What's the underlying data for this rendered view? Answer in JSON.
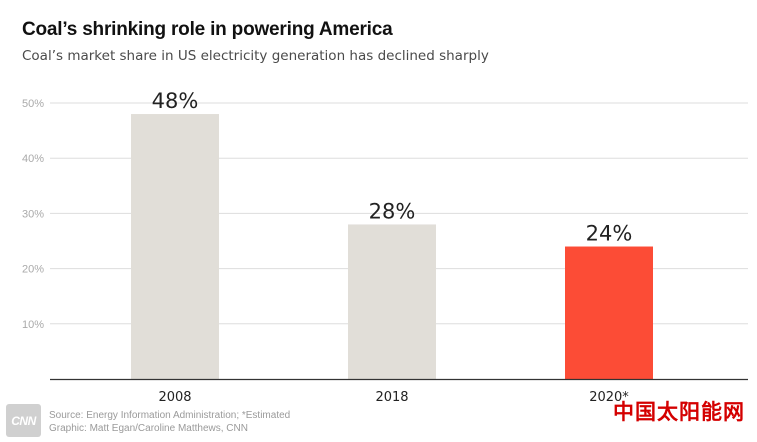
{
  "header": {
    "title": "Coal’s shrinking role in powering America",
    "subtitle": "Coal’s market share in US electricity generation has declined sharply"
  },
  "chart_data": {
    "type": "bar",
    "categories": [
      "2008",
      "2018",
      "2020*"
    ],
    "values": [
      48,
      28,
      24
    ],
    "value_labels": [
      "48%",
      "28%",
      "24%"
    ],
    "bar_colors": [
      "#e1ded8",
      "#e1ded8",
      "#fc4c36"
    ],
    "y_ticks": [
      10,
      20,
      30,
      40,
      50
    ],
    "y_tick_labels": [
      "10%",
      "20%",
      "30%",
      "40%",
      "50%"
    ],
    "ylim": [
      0,
      50
    ],
    "grid": true,
    "title": "Coal’s shrinking role in powering America",
    "xlabel": "",
    "ylabel": ""
  },
  "footer": {
    "logo_text": "CNN",
    "source": "Source: Energy Information Administration; *Estimated",
    "credit": "Graphic: Matt Egan/Caroline Matthews, CNN",
    "watermark": "中国太阳能网"
  },
  "colors": {
    "gridline": "#dddddd",
    "axis": "#333333",
    "tick_label": "#aaaaaa",
    "bar_default": "#e1ded8",
    "bar_highlight": "#fc4c36"
  }
}
